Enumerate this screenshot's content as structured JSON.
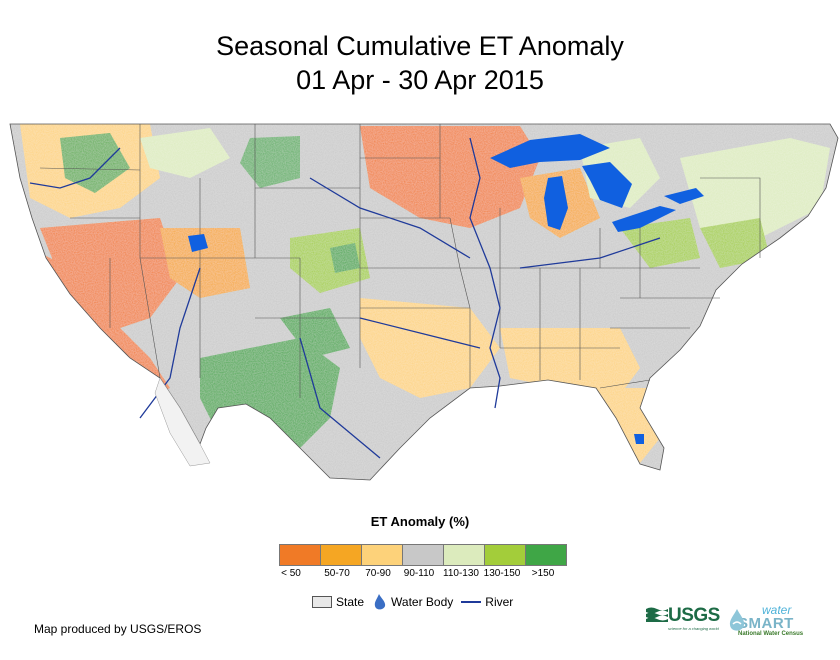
{
  "title": {
    "line1": "Seasonal Cumulative ET Anomaly",
    "line2": "01 Apr - 30 Apr 2015"
  },
  "legend": {
    "title": "ET Anomaly (%)",
    "classes": [
      {
        "label": "< 50",
        "color": "#f07a26"
      },
      {
        "label": "50-70",
        "color": "#f5a623"
      },
      {
        "label": "70-90",
        "color": "#fdd27a"
      },
      {
        "label": "90-110",
        "color": "#c8c8c8"
      },
      {
        "label": "110-130",
        "color": "#dcebbd"
      },
      {
        "label": "130-150",
        "color": "#a3cd3a"
      },
      {
        "label": ">150",
        "color": "#3fa646"
      }
    ],
    "features": {
      "state": "State",
      "water_body": "Water Body",
      "river": "River"
    }
  },
  "credit": "Map produced by USGS/EROS",
  "logos": {
    "usgs": "USGS",
    "usgs_tagline": "science for a changing world",
    "ws_water": "water",
    "ws_smart": "SMART",
    "ws_sub": "National Water Census"
  },
  "colors": {
    "water": "#1060e0",
    "river": "#1f3a9a",
    "state_border": "#555555"
  }
}
